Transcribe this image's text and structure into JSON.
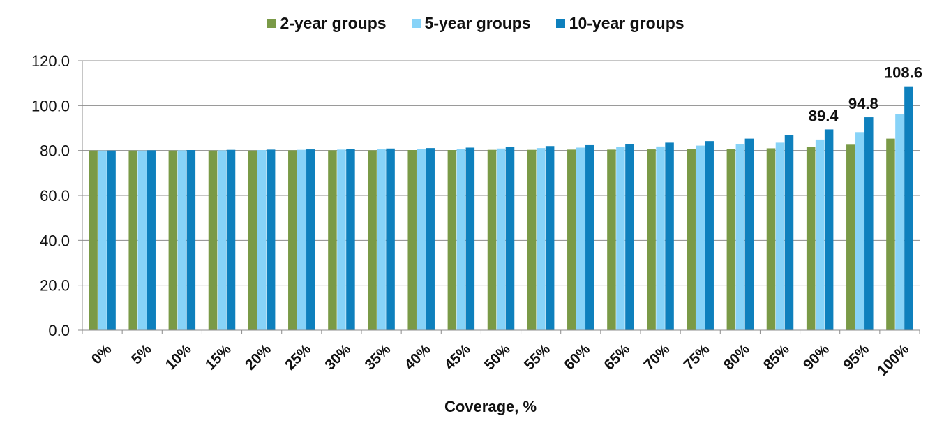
{
  "colors": {
    "s2": "#7a9a47",
    "s5": "#87d3f8",
    "s10": "#0e80bd",
    "grid": "#8c8c8c",
    "axis": "#8c8c8c"
  },
  "chart_data": {
    "type": "bar",
    "title": "",
    "xlabel": "Coverage, %",
    "ylabel": "",
    "ylim": [
      0,
      120
    ],
    "yticks": [
      "0.0",
      "20.0",
      "40.0",
      "60.0",
      "80.0",
      "100.0",
      "120.0"
    ],
    "grid": true,
    "legend_position": "top",
    "categories": [
      "0%",
      "5%",
      "10%",
      "15%",
      "20%",
      "25%",
      "30%",
      "35%",
      "40%",
      "45%",
      "50%",
      "55%",
      "60%",
      "65%",
      "70%",
      "75%",
      "80%",
      "85%",
      "90%",
      "95%",
      "100%"
    ],
    "series": [
      {
        "name": "2-year groups",
        "values": [
          80.0,
          80.0,
          80.0,
          80.0,
          80.0,
          80.1,
          80.1,
          80.1,
          80.2,
          80.2,
          80.3,
          80.3,
          80.4,
          80.4,
          80.5,
          80.6,
          80.8,
          81.0,
          81.5,
          82.6,
          85.3
        ]
      },
      {
        "name": "5-year groups",
        "values": [
          80.0,
          80.0,
          80.1,
          80.1,
          80.2,
          80.3,
          80.4,
          80.5,
          80.6,
          80.7,
          80.9,
          81.1,
          81.3,
          81.5,
          81.8,
          82.2,
          82.7,
          83.5,
          84.9,
          88.2,
          96.1
        ]
      },
      {
        "name": "10-year groups",
        "values": [
          80.0,
          80.1,
          80.2,
          80.3,
          80.4,
          80.5,
          80.7,
          80.9,
          81.1,
          81.3,
          81.6,
          82.0,
          82.4,
          82.9,
          83.5,
          84.2,
          85.3,
          86.8,
          89.4,
          94.8,
          108.6
        ]
      }
    ],
    "data_labels": [
      {
        "series": 2,
        "index": 18,
        "text": "89.4"
      },
      {
        "series": 2,
        "index": 19,
        "text": "94.8"
      },
      {
        "series": 2,
        "index": 20,
        "text": "108.6"
      }
    ]
  }
}
